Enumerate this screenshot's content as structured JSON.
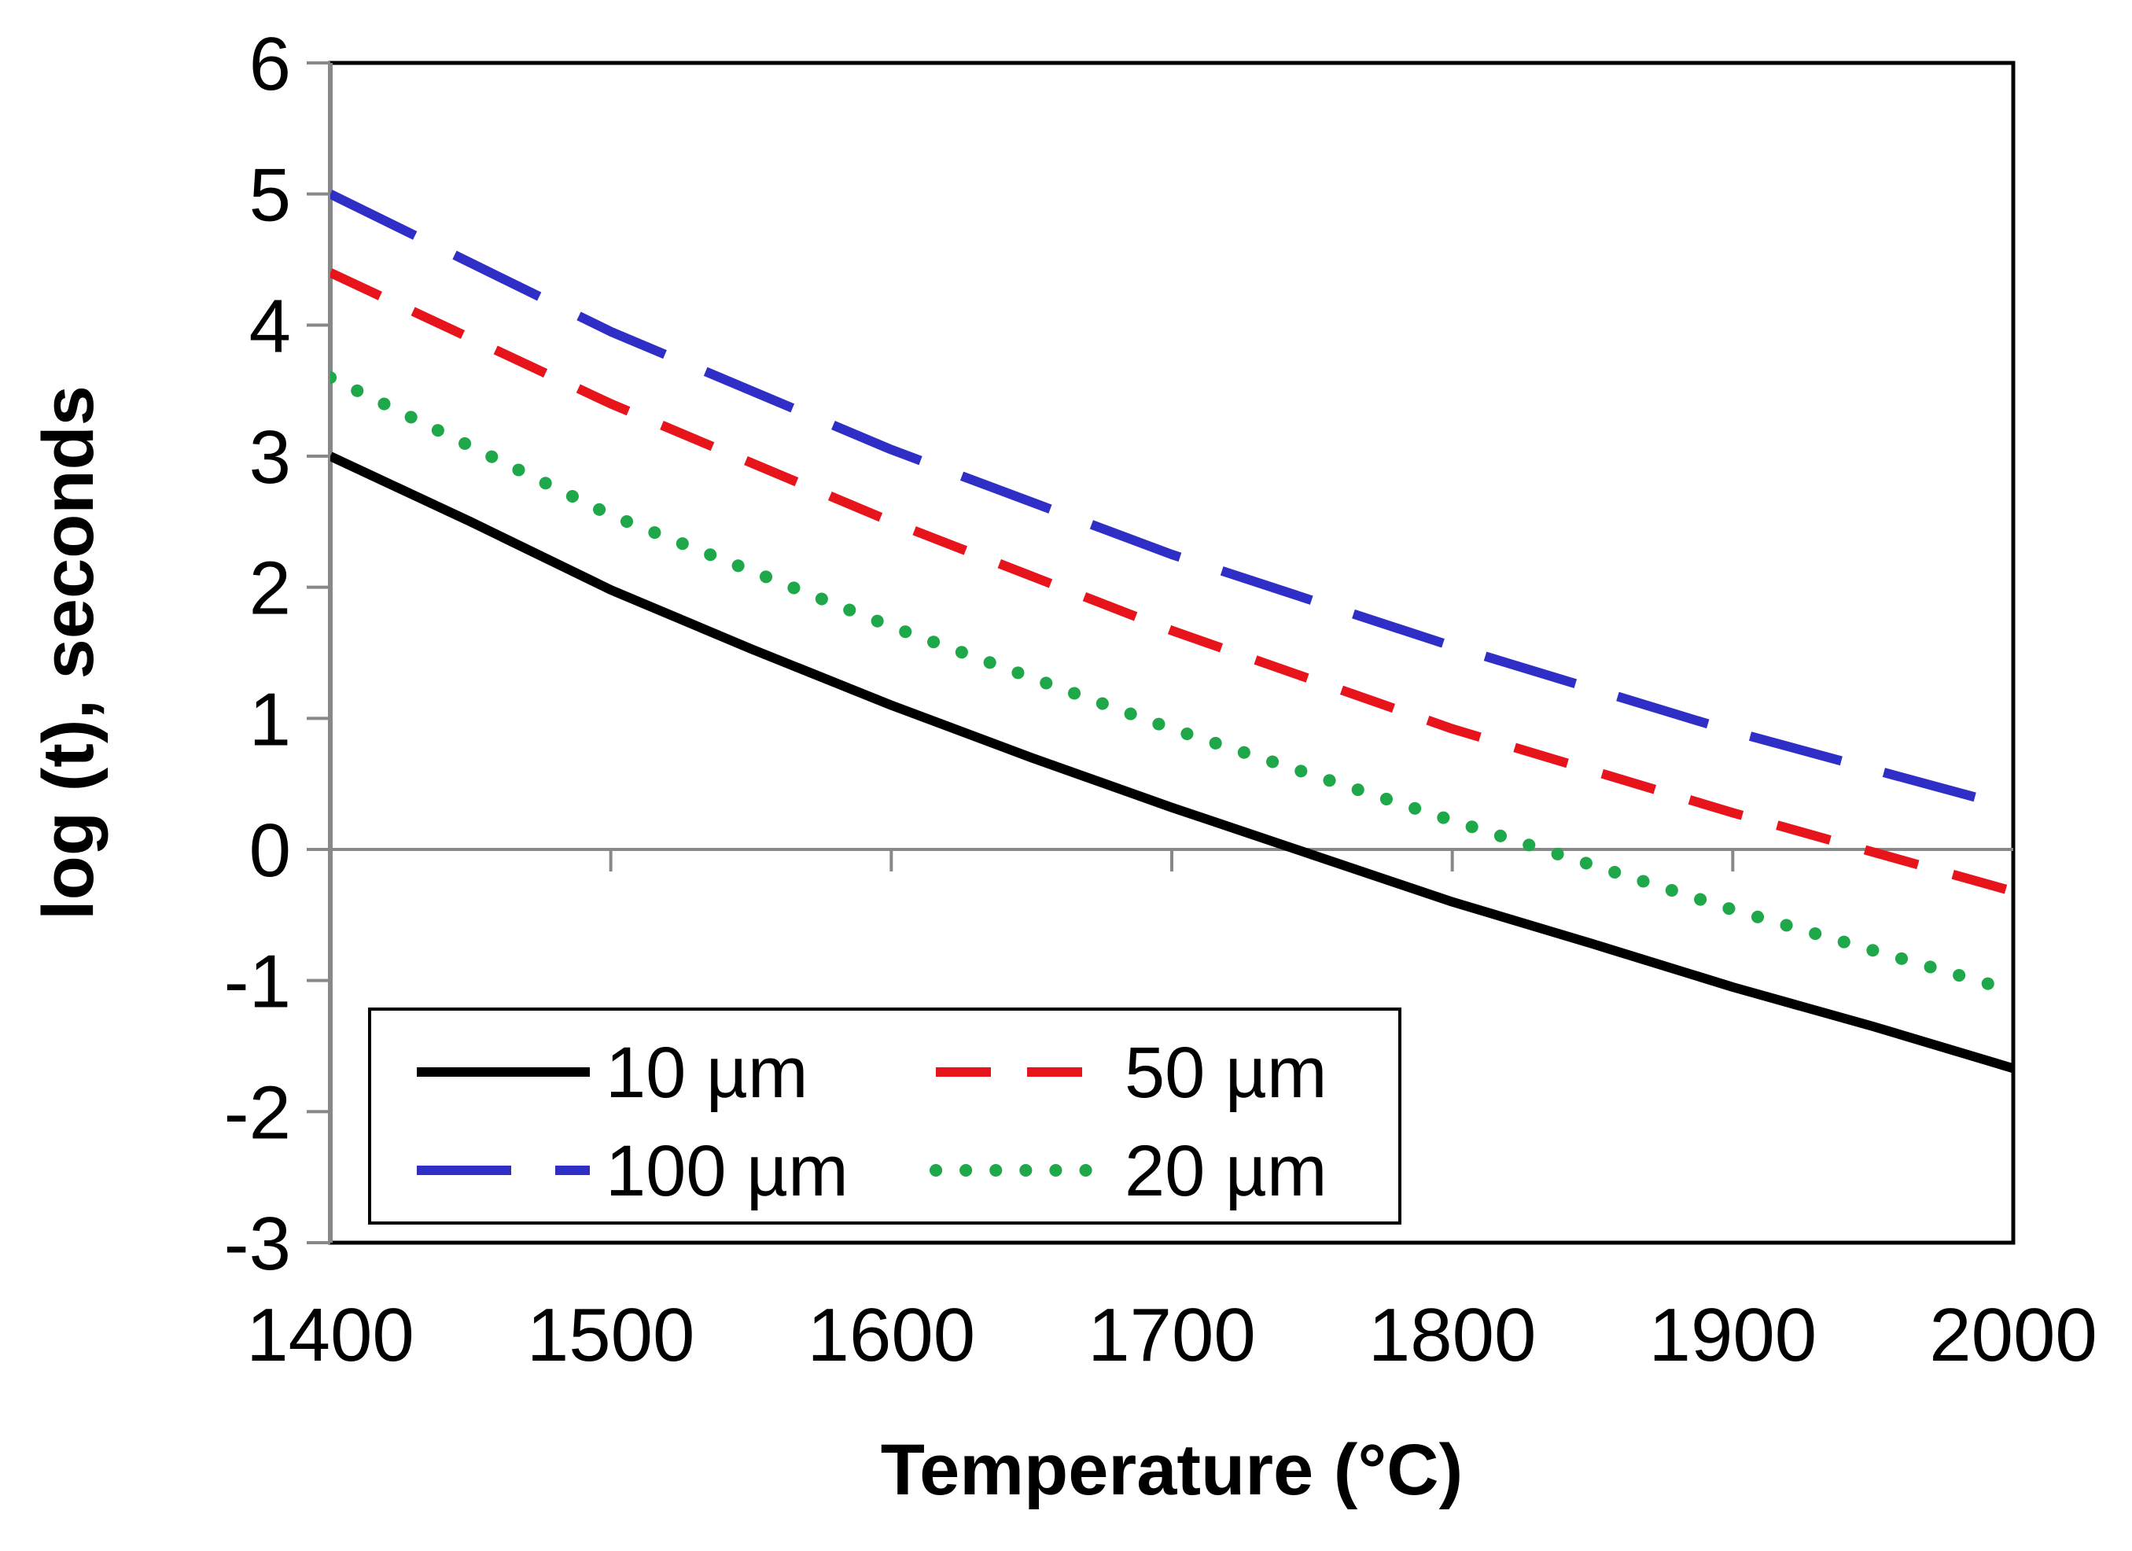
{
  "chart_data": {
    "type": "line",
    "title": "",
    "xlabel": "Temperature (°C)",
    "ylabel": "log (t), seconds",
    "xlim": [
      1400,
      2000
    ],
    "ylim": [
      -3,
      6
    ],
    "x_ticks": [
      1400,
      1500,
      1600,
      1700,
      1800,
      1900,
      2000
    ],
    "x_tick_labels": [
      "1400",
      "1500",
      "1600",
      "1700",
      "1800",
      "1900",
      "2000"
    ],
    "y_ticks": [
      6,
      5,
      4,
      3,
      2,
      1,
      0,
      -1,
      -2,
      -3
    ],
    "y_tick_labels": [
      "6",
      "5",
      "4",
      "3",
      "2",
      "1",
      "0",
      "-1",
      "-2",
      "-3"
    ],
    "grid": false,
    "legend_position": "bottom-left",
    "series": [
      {
        "name": "10 µm",
        "color": "#000000",
        "style": "solid",
        "x": [
          1400,
          1450,
          1500,
          1550,
          1600,
          1650,
          1700,
          1750,
          1800,
          1850,
          1900,
          1950,
          2000
        ],
        "values": [
          3.0,
          2.5,
          1.98,
          1.53,
          1.1,
          0.7,
          0.32,
          -0.04,
          -0.4,
          -0.72,
          -1.05,
          -1.35,
          -1.67
        ]
      },
      {
        "name": "50 µm",
        "color": "#e8141c",
        "style": "dashed",
        "x": [
          1400,
          1500,
          1600,
          1700,
          1800,
          1900,
          2000
        ],
        "values": [
          4.4,
          3.4,
          2.5,
          1.67,
          0.92,
          0.28,
          -0.32
        ]
      },
      {
        "name": "100 µm",
        "color": "#2f2fc8",
        "style": "longdash",
        "x": [
          1400,
          1500,
          1600,
          1700,
          1800,
          1900,
          2000
        ],
        "values": [
          5.0,
          3.95,
          3.05,
          2.25,
          1.55,
          0.9,
          0.32
        ]
      },
      {
        "name": "20 µm",
        "color": "#1fa84a",
        "style": "dotted",
        "x": [
          1400,
          1500,
          1600,
          1700,
          1800,
          1900,
          2000
        ],
        "values": [
          3.6,
          2.55,
          1.7,
          0.92,
          0.22,
          -0.46,
          -1.08
        ]
      }
    ],
    "legend_items": [
      {
        "name": "10 µm",
        "color": "#000000",
        "style": "solid"
      },
      {
        "name": "50 µm",
        "color": "#e8141c",
        "style": "dashed"
      },
      {
        "name": "100 µm",
        "color": "#2f2fc8",
        "style": "longdash"
      },
      {
        "name": "20 µm",
        "color": "#1fa84a",
        "style": "dotted"
      }
    ]
  }
}
